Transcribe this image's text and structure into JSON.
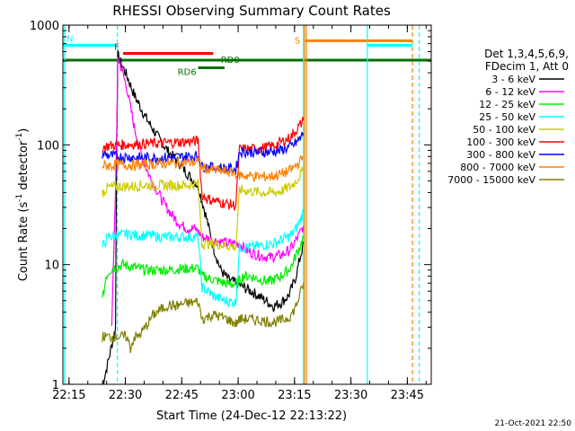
{
  "chart_data": {
    "type": "line",
    "title": "RHESSI Observing Summary Count Rates",
    "xlabel": "Start Time (24-Dec-12 22:13:22)",
    "ylabel_main": "Count Rate (s",
    "ylabel_sup1": "-1",
    "ylabel_mid": " detector",
    "ylabel_sup2": "-1",
    "ylabel_end": ")",
    "x_unit": "minutes since 22:13:22",
    "xlim": [
      0,
      98
    ],
    "ylim": [
      1,
      1000
    ],
    "yscale": "log",
    "x_ticks": [
      {
        "label": "22:15",
        "x": 1.63
      },
      {
        "label": "22:30",
        "x": 16.63
      },
      {
        "label": "22:45",
        "x": 31.63
      },
      {
        "label": "23:00",
        "x": 46.63
      },
      {
        "label": "23:15",
        "x": 61.63
      },
      {
        "label": "23:30",
        "x": 76.63
      },
      {
        "label": "23:45",
        "x": 91.63
      }
    ],
    "y_ticks": [
      {
        "label": "1",
        "v": 1
      },
      {
        "label": "10",
        "v": 10
      },
      {
        "label": "100",
        "v": 100
      },
      {
        "label": "1000",
        "v": 1000
      }
    ],
    "legend": {
      "placement": "right",
      "header": [
        "Det 1,3,4,5,6,9,",
        "FDecim 1, Att 0"
      ],
      "entries": [
        {
          "label": "3 - 6 keV",
          "color": "#000000"
        },
        {
          "label": "6 - 12 keV",
          "color": "#ff00ff"
        },
        {
          "label": "12 - 25 keV",
          "color": "#00ee00"
        },
        {
          "label": "25 - 50 keV",
          "color": "#00ffff"
        },
        {
          "label": "50 - 100 keV",
          "color": "#cccc00"
        },
        {
          "label": "100 - 300 keV",
          "color": "#ff0000"
        },
        {
          "label": "300 - 800 keV",
          "color": "#0000ff"
        },
        {
          "label": "800 - 7000 keV",
          "color": "#ff8000"
        },
        {
          "label": "7000 - 15000 keV",
          "color": "#808000"
        }
      ]
    },
    "flags": [
      {
        "label": "N",
        "color": "#00ffff",
        "y": 680,
        "x0": 0,
        "x1": 14.5
      },
      {
        "label": "F",
        "color": "#ff0000",
        "y": 580,
        "x0": 16,
        "x1": 40
      },
      {
        "label": "S",
        "color": "#ff8000",
        "y": 740,
        "x0": 64.5,
        "x1": 93
      },
      {
        "label": "",
        "color": "#00ffff",
        "y": 680,
        "x0": 81,
        "x1": 93
      },
      {
        "label": "RD0",
        "color": "#007000",
        "y": 510,
        "x0": 0,
        "x1": 98
      },
      {
        "label": "RD6",
        "color": "#007000",
        "y": 440,
        "x0": 36,
        "x1": 43
      }
    ],
    "vlines": [
      {
        "x": 0.5,
        "color": "#00ffff",
        "dashed": false
      },
      {
        "x": 14.5,
        "color": "#00ffff",
        "dashed": true
      },
      {
        "x": 64.0,
        "color": "#00ffff",
        "dashed": false
      },
      {
        "x": 64.3,
        "color": "#ff8000",
        "dashed": false
      },
      {
        "x": 64.8,
        "color": "#ff8000",
        "dashed": false
      },
      {
        "x": 81.0,
        "color": "#00ffff",
        "dashed": false
      },
      {
        "x": 93.0,
        "color": "#ff8000",
        "dashed": true
      },
      {
        "x": 94.8,
        "color": "#00ffff",
        "dashed": true
      }
    ],
    "series": [
      {
        "name": "3 - 6 keV",
        "color": "#000000",
        "points": [
          [
            10.5,
            1.0
          ],
          [
            11.5,
            1.3
          ],
          [
            12.5,
            1.8
          ],
          [
            13.5,
            2.5
          ],
          [
            14.0,
            3.0
          ],
          [
            14.3,
            100
          ],
          [
            14.6,
            560
          ],
          [
            15,
            520
          ],
          [
            17,
            380
          ],
          [
            19,
            260
          ],
          [
            22,
            170
          ],
          [
            25,
            120
          ],
          [
            28,
            88
          ],
          [
            31,
            70
          ],
          [
            33,
            58
          ],
          [
            36,
            45
          ],
          [
            38,
            26
          ],
          [
            40,
            14
          ],
          [
            42,
            9
          ],
          [
            44,
            7.5
          ],
          [
            46,
            7
          ],
          [
            48,
            6.5
          ],
          [
            50,
            6
          ],
          [
            52,
            5.5
          ],
          [
            54,
            5
          ],
          [
            56,
            4.5
          ],
          [
            58,
            4.8
          ],
          [
            60,
            5.5
          ],
          [
            61,
            6.5
          ],
          [
            62,
            8
          ],
          [
            63,
            11
          ],
          [
            64,
            15
          ]
        ]
      },
      {
        "name": "6 - 12 keV",
        "color": "#ff00ff",
        "points": [
          [
            13.0,
            3.0
          ],
          [
            14.3,
            100
          ],
          [
            14.6,
            560
          ],
          [
            15,
            500
          ],
          [
            17,
            300
          ],
          [
            19,
            140
          ],
          [
            21,
            80
          ],
          [
            23,
            55
          ],
          [
            25,
            42
          ],
          [
            27,
            32
          ],
          [
            29,
            26
          ],
          [
            31,
            22
          ],
          [
            33,
            20
          ],
          [
            35,
            20
          ],
          [
            36,
            19
          ],
          [
            37,
            17
          ],
          [
            40,
            16
          ],
          [
            44,
            15
          ],
          [
            47,
            15
          ],
          [
            49,
            13
          ],
          [
            52,
            12
          ],
          [
            55,
            11.5
          ],
          [
            58,
            12
          ],
          [
            60,
            13
          ],
          [
            61,
            14
          ],
          [
            62,
            16
          ],
          [
            63,
            18
          ],
          [
            64,
            21
          ]
        ]
      },
      {
        "name": "12 - 25 keV",
        "color": "#00ee00",
        "points": [
          [
            10.5,
            5
          ],
          [
            11.5,
            8
          ],
          [
            12.5,
            9
          ],
          [
            14,
            9.5
          ],
          [
            16,
            10
          ],
          [
            19,
            9.5
          ],
          [
            22,
            9
          ],
          [
            25,
            9
          ],
          [
            28,
            9
          ],
          [
            31,
            9.2
          ],
          [
            34,
            9.3
          ],
          [
            36,
            9.3
          ],
          [
            37,
            8
          ],
          [
            40,
            7.5
          ],
          [
            43,
            7
          ],
          [
            46,
            6.8
          ],
          [
            48,
            8
          ],
          [
            50,
            8
          ],
          [
            52,
            7.6
          ],
          [
            55,
            7.2
          ],
          [
            58,
            8
          ],
          [
            60,
            9
          ],
          [
            61,
            10
          ],
          [
            62,
            12
          ],
          [
            63,
            14
          ],
          [
            64,
            17
          ]
        ]
      },
      {
        "name": "25 - 50 keV",
        "color": "#00ffff",
        "points": [
          [
            10.5,
            14
          ],
          [
            12,
            17
          ],
          [
            14,
            17.5
          ],
          [
            17,
            18
          ],
          [
            20,
            17.5
          ],
          [
            23,
            17.5
          ],
          [
            26,
            17
          ],
          [
            29,
            17
          ],
          [
            32,
            17
          ],
          [
            36,
            17
          ],
          [
            37,
            6.5
          ],
          [
            40,
            5.5
          ],
          [
            43,
            5
          ],
          [
            46,
            4.8
          ],
          [
            47,
            14
          ],
          [
            50,
            14
          ],
          [
            53,
            14.5
          ],
          [
            56,
            15
          ],
          [
            58,
            16
          ],
          [
            60,
            17
          ],
          [
            61,
            18
          ],
          [
            62,
            20
          ],
          [
            63,
            23
          ],
          [
            64,
            28
          ]
        ]
      },
      {
        "name": "50 - 100 keV",
        "color": "#cccc00",
        "points": [
          [
            10.5,
            40
          ],
          [
            12,
            44
          ],
          [
            15,
            45
          ],
          [
            18,
            45
          ],
          [
            21,
            46
          ],
          [
            24,
            46
          ],
          [
            27,
            46
          ],
          [
            30,
            46
          ],
          [
            33,
            46
          ],
          [
            36,
            47
          ],
          [
            37,
            15
          ],
          [
            40,
            15
          ],
          [
            43,
            14.5
          ],
          [
            46,
            14
          ],
          [
            47,
            42
          ],
          [
            50,
            41
          ],
          [
            53,
            40
          ],
          [
            56,
            40
          ],
          [
            58,
            41
          ],
          [
            60,
            44
          ],
          [
            61,
            46
          ],
          [
            62,
            50
          ],
          [
            63,
            55
          ],
          [
            64,
            62
          ]
        ]
      },
      {
        "name": "100 - 300 keV",
        "color": "#ff0000",
        "points": [
          [
            10.5,
            95
          ],
          [
            12,
            98
          ],
          [
            15,
            100
          ],
          [
            18,
            101
          ],
          [
            21,
            102
          ],
          [
            24,
            103
          ],
          [
            27,
            104
          ],
          [
            30,
            105
          ],
          [
            33,
            106
          ],
          [
            36,
            108
          ],
          [
            37,
            38
          ],
          [
            39,
            35
          ],
          [
            42,
            33
          ],
          [
            44,
            32
          ],
          [
            46,
            31
          ],
          [
            47,
            92
          ],
          [
            50,
            92
          ],
          [
            53,
            94
          ],
          [
            56,
            98
          ],
          [
            58,
            105
          ],
          [
            60,
            113
          ],
          [
            61,
            120
          ],
          [
            62,
            132
          ],
          [
            63,
            145
          ],
          [
            64,
            160
          ]
        ]
      },
      {
        "name": "300 - 800 keV",
        "color": "#0000ff",
        "points": [
          [
            10.5,
            84
          ],
          [
            12,
            82
          ],
          [
            15,
            80
          ],
          [
            18,
            79
          ],
          [
            21,
            78
          ],
          [
            24,
            78
          ],
          [
            27,
            78
          ],
          [
            30,
            79
          ],
          [
            33,
            80
          ],
          [
            36,
            81
          ],
          [
            37,
            66
          ],
          [
            40,
            65
          ],
          [
            43,
            64
          ],
          [
            46,
            62
          ],
          [
            47,
            88
          ],
          [
            50,
            87
          ],
          [
            53,
            87
          ],
          [
            56,
            88
          ],
          [
            58,
            90
          ],
          [
            60,
            95
          ],
          [
            61,
            98
          ],
          [
            62,
            104
          ],
          [
            63,
            112
          ],
          [
            64,
            125
          ]
        ]
      },
      {
        "name": "800 - 7000 keV",
        "color": "#ff8000",
        "points": [
          [
            10.5,
            67
          ],
          [
            12,
            67
          ],
          [
            15,
            68
          ],
          [
            18,
            68
          ],
          [
            21,
            68
          ],
          [
            24,
            69
          ],
          [
            27,
            70
          ],
          [
            30,
            70
          ],
          [
            33,
            71
          ],
          [
            36,
            72
          ],
          [
            37,
            64
          ],
          [
            40,
            62
          ],
          [
            43,
            60
          ],
          [
            46,
            58
          ],
          [
            47,
            56
          ],
          [
            50,
            55
          ],
          [
            53,
            54
          ],
          [
            56,
            55
          ],
          [
            58,
            57
          ],
          [
            60,
            60
          ],
          [
            61,
            63
          ],
          [
            62,
            67
          ],
          [
            63,
            72
          ],
          [
            64,
            80
          ]
        ]
      },
      {
        "name": "7000 - 15000 keV",
        "color": "#808000",
        "points": [
          [
            10.5,
            2.5
          ],
          [
            12,
            2.5
          ],
          [
            14,
            2.5
          ],
          [
            15,
            2.5
          ],
          [
            17,
            2.5
          ],
          [
            18,
            2.0
          ],
          [
            19,
            2.5
          ],
          [
            20,
            2.5
          ],
          [
            22,
            3.0
          ],
          [
            24,
            3.8
          ],
          [
            26,
            4.2
          ],
          [
            28,
            4.6
          ],
          [
            30,
            4.5
          ],
          [
            32,
            4.7
          ],
          [
            34,
            4.8
          ],
          [
            36,
            4.9
          ],
          [
            37,
            3.5
          ],
          [
            40,
            3.8
          ],
          [
            43,
            3.6
          ],
          [
            46,
            3.2
          ],
          [
            47,
            3.5
          ],
          [
            50,
            3.5
          ],
          [
            53,
            3.4
          ],
          [
            56,
            3.3
          ],
          [
            58,
            3.4
          ],
          [
            60,
            3.6
          ],
          [
            61,
            3.9
          ],
          [
            62,
            4.5
          ],
          [
            63,
            5.5
          ],
          [
            64,
            7.0
          ]
        ]
      }
    ],
    "grid": false
  },
  "timestamp": "21-Oct-2021 22:50"
}
